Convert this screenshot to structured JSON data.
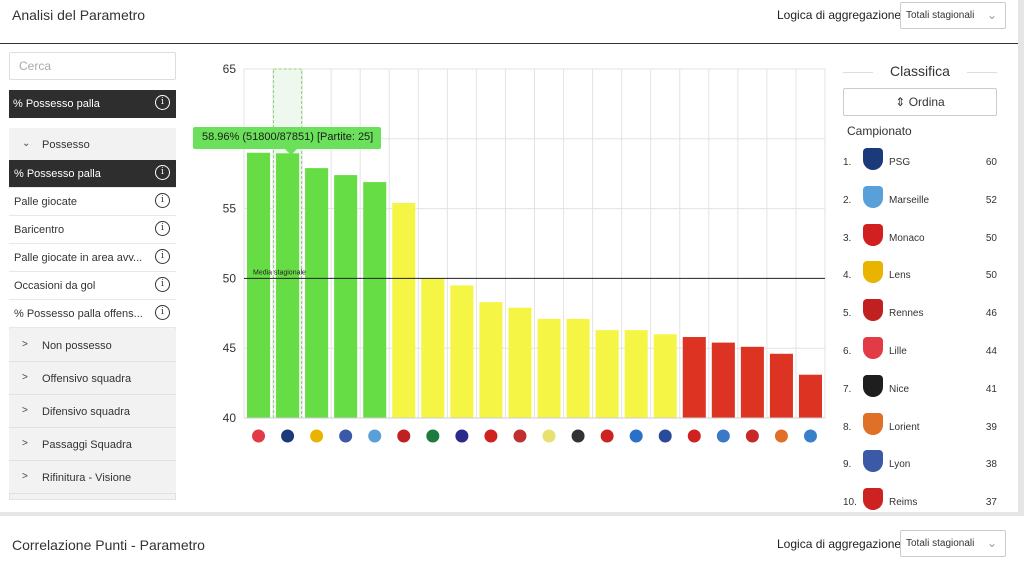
{
  "header": {
    "title": "Analisi del Parametro",
    "agg_label": "Logica di aggregazione:",
    "agg_value": "Totali stagionali"
  },
  "sidebar": {
    "search_placeholder": "Cerca",
    "selected_param": "% Possesso palla",
    "open_group": "Possesso",
    "items": [
      "% Possesso palla",
      "Palle giocate",
      "Baricentro",
      "Palle giocate in area avv...",
      "Occasioni da gol",
      "% Possesso palla offens..."
    ],
    "groups": [
      "Non possesso",
      "Offensivo squadra",
      "Difensivo squadra",
      "Passaggi Squadra",
      "Rifinitura - Visione"
    ]
  },
  "chart_data": {
    "type": "bar",
    "ylim": [
      40,
      65
    ],
    "yticks": [
      40,
      45,
      50,
      55,
      65
    ],
    "values": [
      59.0,
      58.96,
      57.9,
      57.4,
      56.9,
      55.4,
      50.0,
      49.5,
      48.3,
      47.9,
      47.1,
      47.1,
      46.3,
      46.3,
      46.0,
      45.8,
      45.4,
      45.1,
      44.6,
      43.1
    ],
    "bar_colors": [
      "#66dd44",
      "#66dd44",
      "#66dd44",
      "#66dd44",
      "#66dd44",
      "#f5f546",
      "#f5f546",
      "#f5f546",
      "#f5f546",
      "#f5f546",
      "#f5f546",
      "#f5f546",
      "#f5f546",
      "#f5f546",
      "#f5f546",
      "#dd3322",
      "#dd3322",
      "#dd3322",
      "#dd3322",
      "#dd3322"
    ],
    "logo_colors": [
      "#e23a46",
      "#1a3a7a",
      "#e8b400",
      "#3a5aa8",
      "#5aa0d8",
      "#c02020",
      "#1e7a3e",
      "#2a2a8a",
      "#d02020",
      "#c03030",
      "#e8e070",
      "#333333",
      "#cc2222",
      "#2a70c8",
      "#2a4a9a",
      "#d02020",
      "#3a78c8",
      "#c82828",
      "#e07028",
      "#3a80c8"
    ],
    "highlight_index": 1,
    "average_value": 50,
    "average_label": "Media stagionale",
    "tooltip": "58.96% (51800/87851) [Partite: 25]"
  },
  "ranking": {
    "title": "Classifica",
    "sort_label": "Ordina",
    "subtitle": "Campionato",
    "rows": [
      {
        "pos": "1.",
        "team": "PSG",
        "pts": "60",
        "color": "#1a3a7a"
      },
      {
        "pos": "2.",
        "team": "Marseille",
        "pts": "52",
        "color": "#5aa0d8"
      },
      {
        "pos": "3.",
        "team": "Monaco",
        "pts": "50",
        "color": "#d02020"
      },
      {
        "pos": "4.",
        "team": "Lens",
        "pts": "50",
        "color": "#e8b400"
      },
      {
        "pos": "5.",
        "team": "Rennes",
        "pts": "46",
        "color": "#c02020"
      },
      {
        "pos": "6.",
        "team": "Lille",
        "pts": "44",
        "color": "#e23a46"
      },
      {
        "pos": "7.",
        "team": "Nice",
        "pts": "41",
        "color": "#1e1e1e"
      },
      {
        "pos": "8.",
        "team": "Lorient",
        "pts": "39",
        "color": "#e07028"
      },
      {
        "pos": "9.",
        "team": "Lyon",
        "pts": "38",
        "color": "#3a5aa8"
      },
      {
        "pos": "10.",
        "team": "Reims",
        "pts": "37",
        "color": "#cc2222"
      }
    ]
  },
  "bottom": {
    "title": "Correlazione Punti - Parametro",
    "agg_label": "Logica di aggregazione:",
    "agg_value": "Totali stagionali"
  }
}
